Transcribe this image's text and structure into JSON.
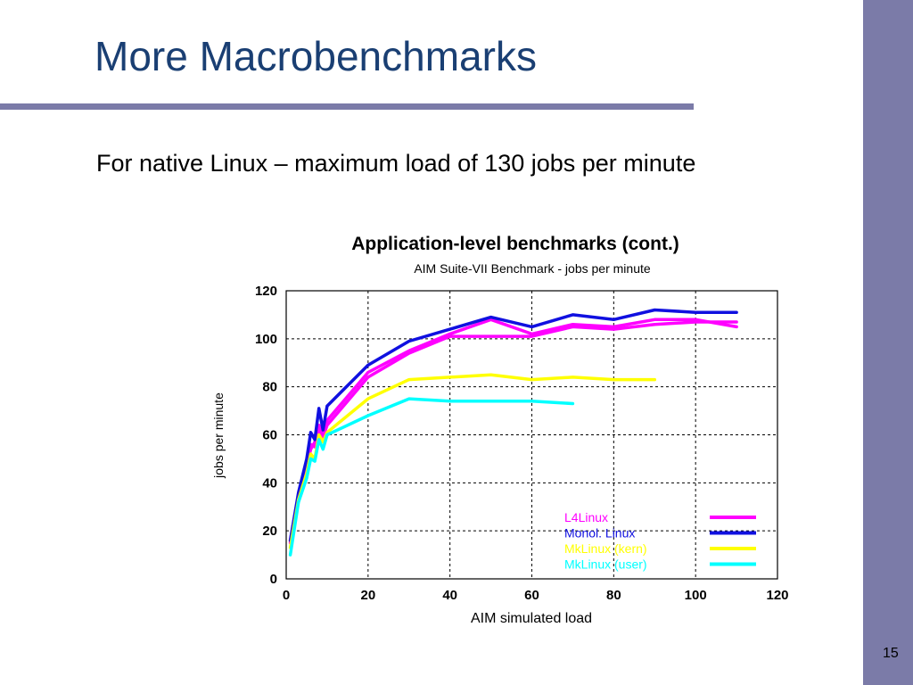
{
  "slide": {
    "title": "More Macrobenchmarks",
    "body": "For native Linux – maximum load of 130 jobs per minute",
    "page_number": "15",
    "accent_color": "#7b7ba8",
    "title_color": "#1a3f73"
  },
  "chart_data": {
    "type": "line",
    "title": "Application-level benchmarks (cont.)",
    "subtitle": "AIM Suite-VII Benchmark - jobs per minute",
    "xlabel": "AIM simulated load",
    "ylabel": "jobs per minute",
    "xlim": [
      0,
      120
    ],
    "ylim": [
      0,
      120
    ],
    "xticks": [
      0,
      20,
      40,
      60,
      80,
      100,
      120
    ],
    "yticks": [
      0,
      20,
      40,
      60,
      80,
      100,
      120
    ],
    "grid": true,
    "legend_position": "bottom-right",
    "series": [
      {
        "name": "L4Linux",
        "color": "#ff00ff",
        "x": [
          1,
          3,
          5,
          6,
          7,
          8,
          9,
          10,
          20,
          30,
          40,
          50,
          60,
          70,
          80,
          90,
          100,
          110
        ],
        "y": [
          15,
          34,
          46,
          56,
          55,
          63,
          58,
          66,
          86,
          95,
          102,
          108,
          102,
          106,
          105,
          108,
          108,
          105
        ]
      },
      {
        "name": "L4Linux",
        "color": "#ff00ff",
        "x": [
          1,
          3,
          5,
          6,
          7,
          8,
          9,
          10,
          20,
          30,
          40,
          50,
          60,
          70,
          80,
          90,
          100,
          110
        ],
        "y": [
          16,
          35,
          47,
          54,
          57,
          64,
          59,
          64,
          84,
          94,
          101,
          101,
          101,
          105,
          104,
          106,
          107,
          107
        ]
      },
      {
        "name": "Monol. Linux",
        "color": "#1010e0",
        "x": [
          1,
          3,
          5,
          6,
          7,
          8,
          9,
          10,
          20,
          30,
          40,
          50,
          60,
          70,
          80,
          90,
          100,
          110
        ],
        "y": [
          16,
          36,
          50,
          61,
          58,
          71,
          62,
          72,
          89,
          99,
          104,
          109,
          105,
          110,
          108,
          112,
          111,
          111
        ]
      },
      {
        "name": "MkLinux (kern)",
        "color": "#ffff00",
        "x": [
          1,
          3,
          5,
          6,
          7,
          8,
          9,
          10,
          20,
          30,
          40,
          50,
          60,
          70,
          80,
          90
        ],
        "y": [
          13,
          33,
          44,
          52,
          50,
          60,
          57,
          61,
          75,
          83,
          84,
          85,
          83,
          84,
          83,
          83
        ]
      },
      {
        "name": "MkLinux (user)",
        "color": "#00ffff",
        "x": [
          1,
          3,
          5,
          6,
          7,
          8,
          9,
          10,
          20,
          30,
          40,
          50,
          60,
          70
        ],
        "y": [
          10,
          32,
          42,
          50,
          49,
          58,
          54,
          60,
          68,
          75,
          74,
          74,
          74,
          73
        ]
      }
    ],
    "legend": [
      {
        "label": "L4Linux",
        "color": "#ff00ff"
      },
      {
        "label": "Monol. Linux",
        "color": "#1010e0"
      },
      {
        "label": "MkLinux (kern)",
        "color": "#ffff00"
      },
      {
        "label": "MkLinux (user)",
        "color": "#00ffff"
      }
    ]
  }
}
